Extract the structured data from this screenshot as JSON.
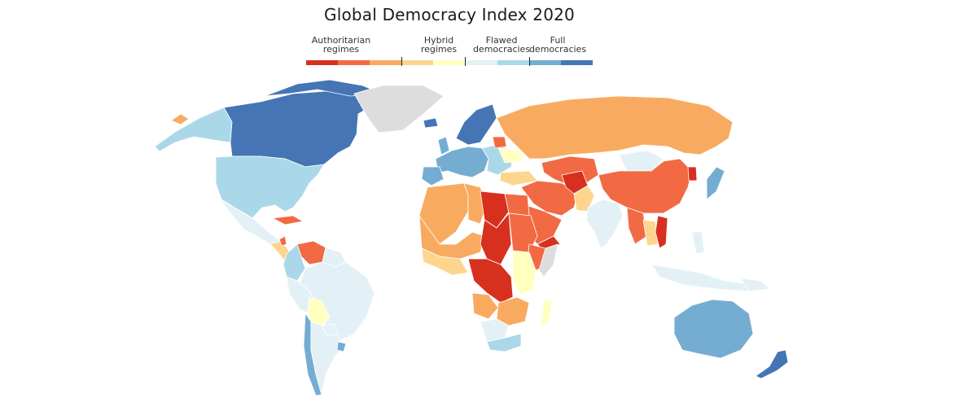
{
  "title": "Global Democracy Index 2020",
  "legend": {
    "categories": [
      {
        "label": "Authoritarian\nregimes"
      },
      {
        "label": "Hybrid\nregimes"
      },
      {
        "label": "Flawed\ndemocracies"
      },
      {
        "label": "Full\ndemocracies"
      }
    ],
    "scale_colors": [
      "#d7301f",
      "#f26a43",
      "#f8ab60",
      "#fdd58e",
      "#ffffc0",
      "#e3f1f7",
      "#abd8e8",
      "#74add1",
      "#4575b4"
    ]
  },
  "regime_colors": {
    "authoritarian_strong": "#d7301f",
    "authoritarian": "#f26a43",
    "authoritarian_mild": "#f8ab60",
    "hybrid": "#fdd58e",
    "hybrid_light": "#ffffc0",
    "flawed_light": "#e3f1f7",
    "flawed": "#abd8e8",
    "full": "#74add1",
    "full_strong": "#4575b4",
    "no_data": "#dddddd"
  }
}
